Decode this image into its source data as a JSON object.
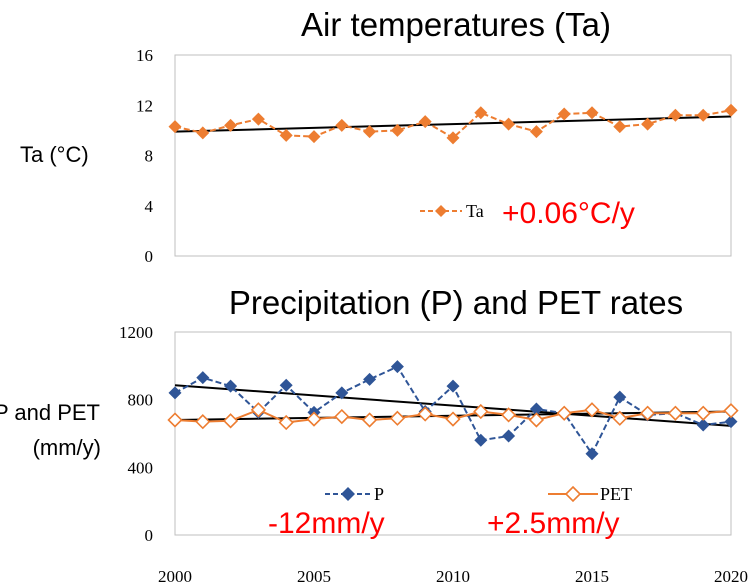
{
  "chart_data": [
    {
      "type": "line",
      "title": "Air temperatures (Ta)",
      "ylabel": "Ta (°C)",
      "ylim": [
        0,
        16
      ],
      "yticks": [
        "0",
        "4",
        "8",
        "12",
        "16"
      ],
      "x": [
        2000,
        2001,
        2002,
        2003,
        2004,
        2005,
        2006,
        2007,
        2008,
        2009,
        2010,
        2011,
        2012,
        2013,
        2014,
        2015,
        2016,
        2017,
        2018,
        2019,
        2020
      ],
      "series": [
        {
          "name": "Ta",
          "color": "#ed7d31",
          "marker": "filled-diamond",
          "dashed": true,
          "values": [
            10.3,
            9.8,
            10.4,
            10.9,
            9.6,
            9.5,
            10.4,
            9.9,
            10.0,
            10.7,
            9.4,
            11.4,
            10.5,
            9.9,
            11.3,
            11.4,
            10.3,
            10.5,
            11.2,
            11.2,
            11.6
          ]
        }
      ],
      "trendlines": [
        {
          "from": [
            2000,
            9.9
          ],
          "to": [
            2020,
            11.1
          ],
          "color": "#000000"
        }
      ],
      "annotations": [
        {
          "text": "+0.06°C/y",
          "color": "#ff0000"
        }
      ],
      "legend": "inside-bottom-right"
    },
    {
      "type": "line",
      "title": "Precipitation (P) and PET rates",
      "ylabel_line1": "P and PET",
      "ylabel_line2": "(mm/y)",
      "ylim": [
        0,
        1200
      ],
      "yticks": [
        "0",
        "400",
        "800",
        "1200"
      ],
      "x": [
        2000,
        2001,
        2002,
        2003,
        2004,
        2005,
        2006,
        2007,
        2008,
        2009,
        2010,
        2011,
        2012,
        2013,
        2014,
        2015,
        2016,
        2017,
        2018,
        2019,
        2020
      ],
      "xticks": [
        "2000",
        "2005",
        "2010",
        "2015",
        "2020"
      ],
      "series": [
        {
          "name": "P",
          "color": "#2f5597",
          "marker": "filled-diamond",
          "dashed": true,
          "values": [
            840,
            930,
            880,
            725,
            885,
            725,
            840,
            920,
            995,
            730,
            880,
            560,
            585,
            745,
            720,
            480,
            815,
            710,
            720,
            650,
            670
          ]
        },
        {
          "name": "PET",
          "color": "#ed7d31",
          "marker": "open-diamond",
          "dashed": false,
          "values": [
            680,
            670,
            675,
            740,
            665,
            685,
            700,
            680,
            690,
            715,
            685,
            730,
            710,
            680,
            720,
            740,
            690,
            720,
            720,
            720,
            735
          ]
        }
      ],
      "trendlines": [
        {
          "from": [
            2000,
            885
          ],
          "to": [
            2020,
            645
          ],
          "color": "#000000"
        },
        {
          "from": [
            2000,
            680
          ],
          "to": [
            2020,
            730
          ],
          "color": "#000000"
        }
      ],
      "annotations": [
        {
          "text": "-12mm/y",
          "color": "#ff0000"
        },
        {
          "text": "+2.5mm/y",
          "color": "#ff0000"
        }
      ],
      "legend": "inside-bottom"
    }
  ]
}
